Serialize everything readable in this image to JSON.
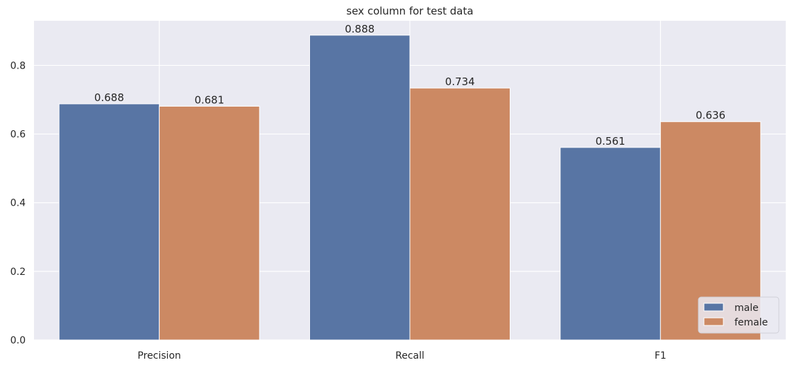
{
  "chart_data": {
    "type": "bar",
    "title": "sex column for test data",
    "xlabel": "",
    "ylabel": "",
    "categories": [
      "Precision",
      "Recall",
      "F1"
    ],
    "series": [
      {
        "name": "male",
        "values": [
          0.688,
          0.888,
          0.561
        ],
        "color": "#5875a4"
      },
      {
        "name": "female",
        "values": [
          0.681,
          0.734,
          0.636
        ],
        "color": "#cc8963"
      }
    ],
    "data_labels": [
      [
        "0.688",
        "0.888",
        "0.561"
      ],
      [
        "0.681",
        "0.734",
        "0.636"
      ]
    ],
    "ylim": [
      0,
      0.93
    ],
    "yticks": [
      0.0,
      0.2,
      0.4,
      0.6,
      0.8
    ],
    "ytick_labels": [
      "0.0",
      "0.2",
      "0.4",
      "0.6",
      "0.8"
    ],
    "grid": true,
    "legend_position": "bottom-right",
    "background_color": "#eaeaf2"
  }
}
